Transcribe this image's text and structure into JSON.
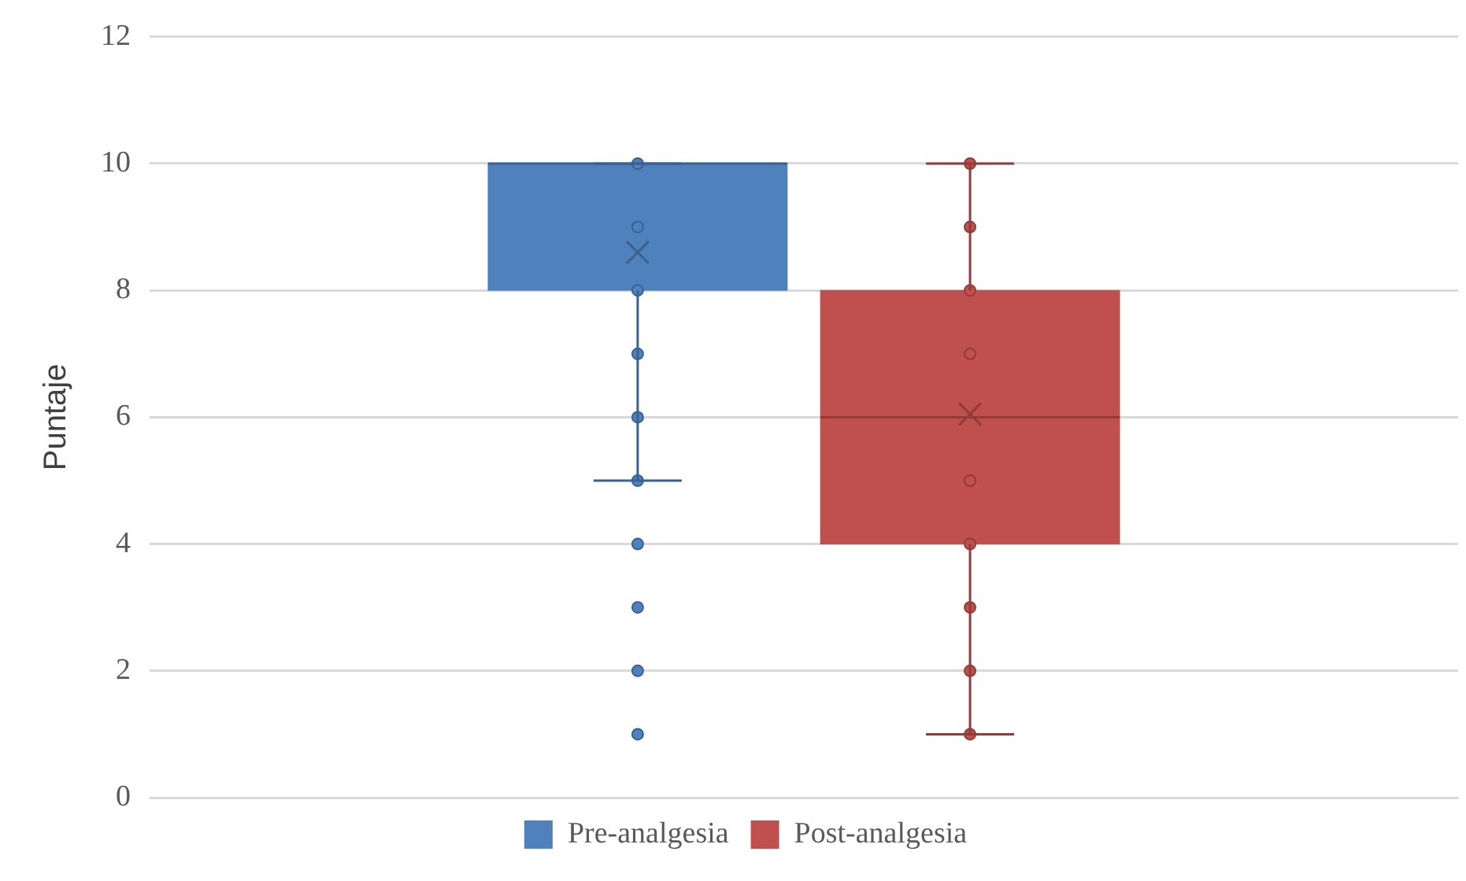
{
  "chart_data": {
    "type": "box",
    "ylabel": "Puntaje",
    "categories": [
      null
    ],
    "ylim": [
      0,
      12
    ],
    "yticks": [
      0,
      2,
      4,
      6,
      8,
      10,
      12
    ],
    "grid": "y",
    "legend": "bottom",
    "tick_labels": "y",
    "marker": "circle",
    "series": [
      {
        "name": "Pre-analgesia",
        "color": "#4f81bd",
        "boxes": [
          {
            "low": 5,
            "q1": 8,
            "median": 10,
            "q3": 10,
            "high": 10,
            "mean": 8.6,
            "outliers": [
              4,
              3,
              2,
              1
            ]
          }
        ]
      },
      {
        "name": "Post-analgesia",
        "color": "#c0504d",
        "boxes": [
          {
            "low": 1,
            "q1": 4,
            "median": 6,
            "q3": 8,
            "high": 10,
            "mean": 6.05
          }
        ]
      },
      {
        "type": "scatter",
        "color": "#4f81bd",
        "x": [
          null,
          null,
          null,
          null,
          null,
          null
        ],
        "values": [
          10,
          9,
          8,
          7,
          6,
          5
        ]
      },
      {
        "type": "scatter",
        "color": "#c0504d",
        "x": [
          null,
          null,
          null,
          null,
          null,
          null,
          null,
          null,
          null
        ],
        "values": [
          10,
          9,
          8,
          7,
          5,
          4,
          3,
          2,
          1
        ]
      }
    ]
  }
}
